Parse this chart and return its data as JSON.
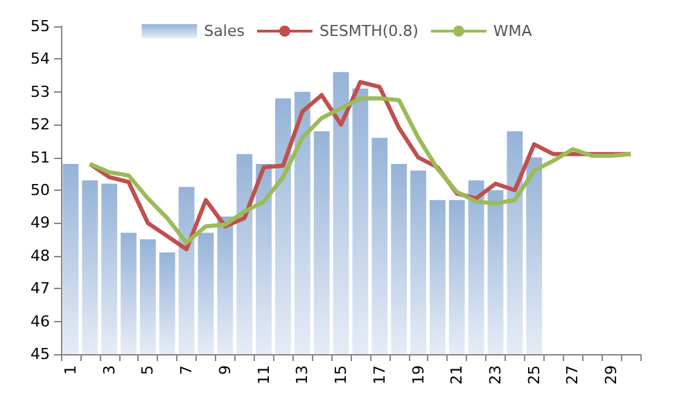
{
  "chart_data": {
    "type": "bar",
    "categories": [
      "1",
      null,
      "3",
      null,
      "5",
      null,
      "7",
      null,
      "9",
      null,
      "11",
      null,
      "13",
      null,
      "15",
      null,
      "17",
      null,
      "19",
      null,
      "21",
      null,
      "23",
      null,
      "25",
      null,
      "27",
      null,
      "29",
      null
    ],
    "series": [
      {
        "name": "Sales",
        "color": "#95b3d7",
        "values": [
          50.8,
          50.3,
          50.2,
          48.7,
          48.5,
          48.1,
          50.1,
          48.7,
          49.2,
          51.1,
          50.8,
          52.8,
          53.0,
          51.8,
          53.6,
          53.1,
          51.6,
          50.8,
          50.6,
          49.7,
          49.7,
          50.3,
          50.0,
          51.8,
          51.0,
          null,
          null,
          null,
          null,
          null
        ]
      },
      {
        "name": "SESMTH(0.8)",
        "type": "line",
        "color": "#c0504d",
        "values": [
          null,
          50.8,
          50.4,
          50.25,
          49.0,
          48.6,
          48.2,
          49.7,
          48.9,
          49.15,
          50.7,
          50.75,
          52.4,
          52.9,
          52.0,
          53.3,
          53.15,
          51.9,
          51.0,
          50.7,
          49.9,
          49.75,
          50.2,
          50.0,
          51.4,
          51.1,
          51.1,
          51.1,
          51.1,
          51.1
        ]
      },
      {
        "name": "WMA",
        "type": "line",
        "color": "#9bbb59",
        "values": [
          null,
          50.8,
          50.55,
          50.45,
          49.75,
          49.15,
          48.4,
          48.9,
          48.95,
          49.35,
          49.65,
          50.4,
          51.6,
          52.2,
          52.5,
          52.8,
          52.8,
          52.75,
          51.6,
          50.65,
          49.95,
          49.65,
          49.6,
          49.7,
          50.6,
          50.9,
          51.25,
          51.05,
          51.05,
          51.1
        ]
      }
    ],
    "ylim": [
      45,
      55
    ],
    "yticks": [
      45,
      46,
      47,
      48,
      49,
      50,
      51,
      52,
      53,
      54,
      55
    ],
    "grid": false,
    "legend": "top"
  }
}
